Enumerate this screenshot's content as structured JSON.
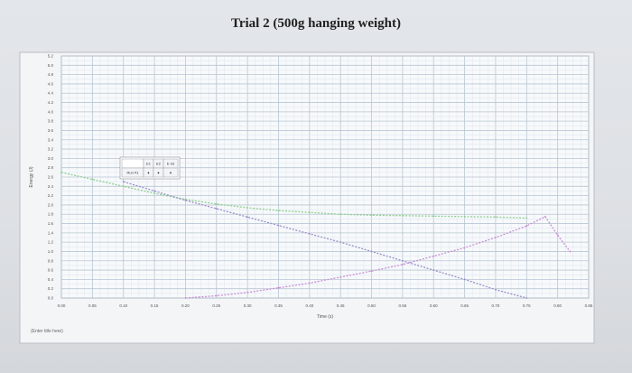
{
  "title": "Trial 2 (500g hanging weight)",
  "chart_data": {
    "type": "line",
    "title": "Trial 2 (500g hanging weight)",
    "xlabel": "Time (s)",
    "ylabel": "Energy (J)",
    "xlim": [
      0.0,
      0.85
    ],
    "ylim": [
      0.0,
      5.2
    ],
    "x_ticks": [
      "0.00",
      "0.05",
      "0.10",
      "0.15",
      "0.20",
      "0.25",
      "0.30",
      "0.35",
      "0.40",
      "0.45",
      "0.50",
      "0.55",
      "0.60",
      "0.65",
      "0.70",
      "0.75",
      "0.80",
      "0.85"
    ],
    "y_ticks": [
      "0.0",
      "0.2",
      "0.4",
      "0.6",
      "0.8",
      "1.0",
      "1.2",
      "1.4",
      "1.6",
      "1.8",
      "2.0",
      "2.2",
      "2.4",
      "2.6",
      "2.8",
      "3.0",
      "3.2",
      "3.4",
      "3.6",
      "3.8",
      "4.0",
      "4.2",
      "4.4",
      "4.6",
      "4.8",
      "5.0",
      "5.2"
    ],
    "grid": true,
    "series": [
      {
        "color": "#8fcf8f",
        "x": [
          0.0,
          0.05,
          0.1,
          0.15,
          0.2,
          0.25,
          0.3,
          0.35,
          0.4,
          0.45,
          0.5,
          0.55,
          0.6,
          0.65,
          0.7,
          0.75
        ],
        "values": [
          2.7,
          2.55,
          2.4,
          2.25,
          2.12,
          2.02,
          1.94,
          1.88,
          1.84,
          1.8,
          1.78,
          1.77,
          1.76,
          1.75,
          1.74,
          1.72
        ]
      },
      {
        "color": "#9a8fc9",
        "x": [
          0.1,
          0.15,
          0.2,
          0.25,
          0.3,
          0.35,
          0.4,
          0.45,
          0.5,
          0.55,
          0.6,
          0.65,
          0.7,
          0.75
        ],
        "values": [
          2.5,
          2.3,
          2.1,
          1.92,
          1.74,
          1.56,
          1.38,
          1.2,
          1.0,
          0.8,
          0.6,
          0.4,
          0.18,
          0.0
        ]
      },
      {
        "color": "#c98fd6",
        "x": [
          0.2,
          0.25,
          0.3,
          0.35,
          0.4,
          0.45,
          0.5,
          0.55,
          0.6,
          0.65,
          0.7,
          0.75,
          0.78,
          0.8,
          0.82
        ],
        "values": [
          0.0,
          0.05,
          0.12,
          0.22,
          0.32,
          0.45,
          0.58,
          0.72,
          0.9,
          1.08,
          1.3,
          1.55,
          1.75,
          1.35,
          1.0
        ]
      }
    ],
    "legend_table": {
      "header": [
        "",
        "E1",
        "E2",
        "E tot"
      ],
      "row": [
        "Run #1",
        "●",
        "●",
        "●"
      ]
    },
    "footer_label": "(Enter title here)"
  }
}
